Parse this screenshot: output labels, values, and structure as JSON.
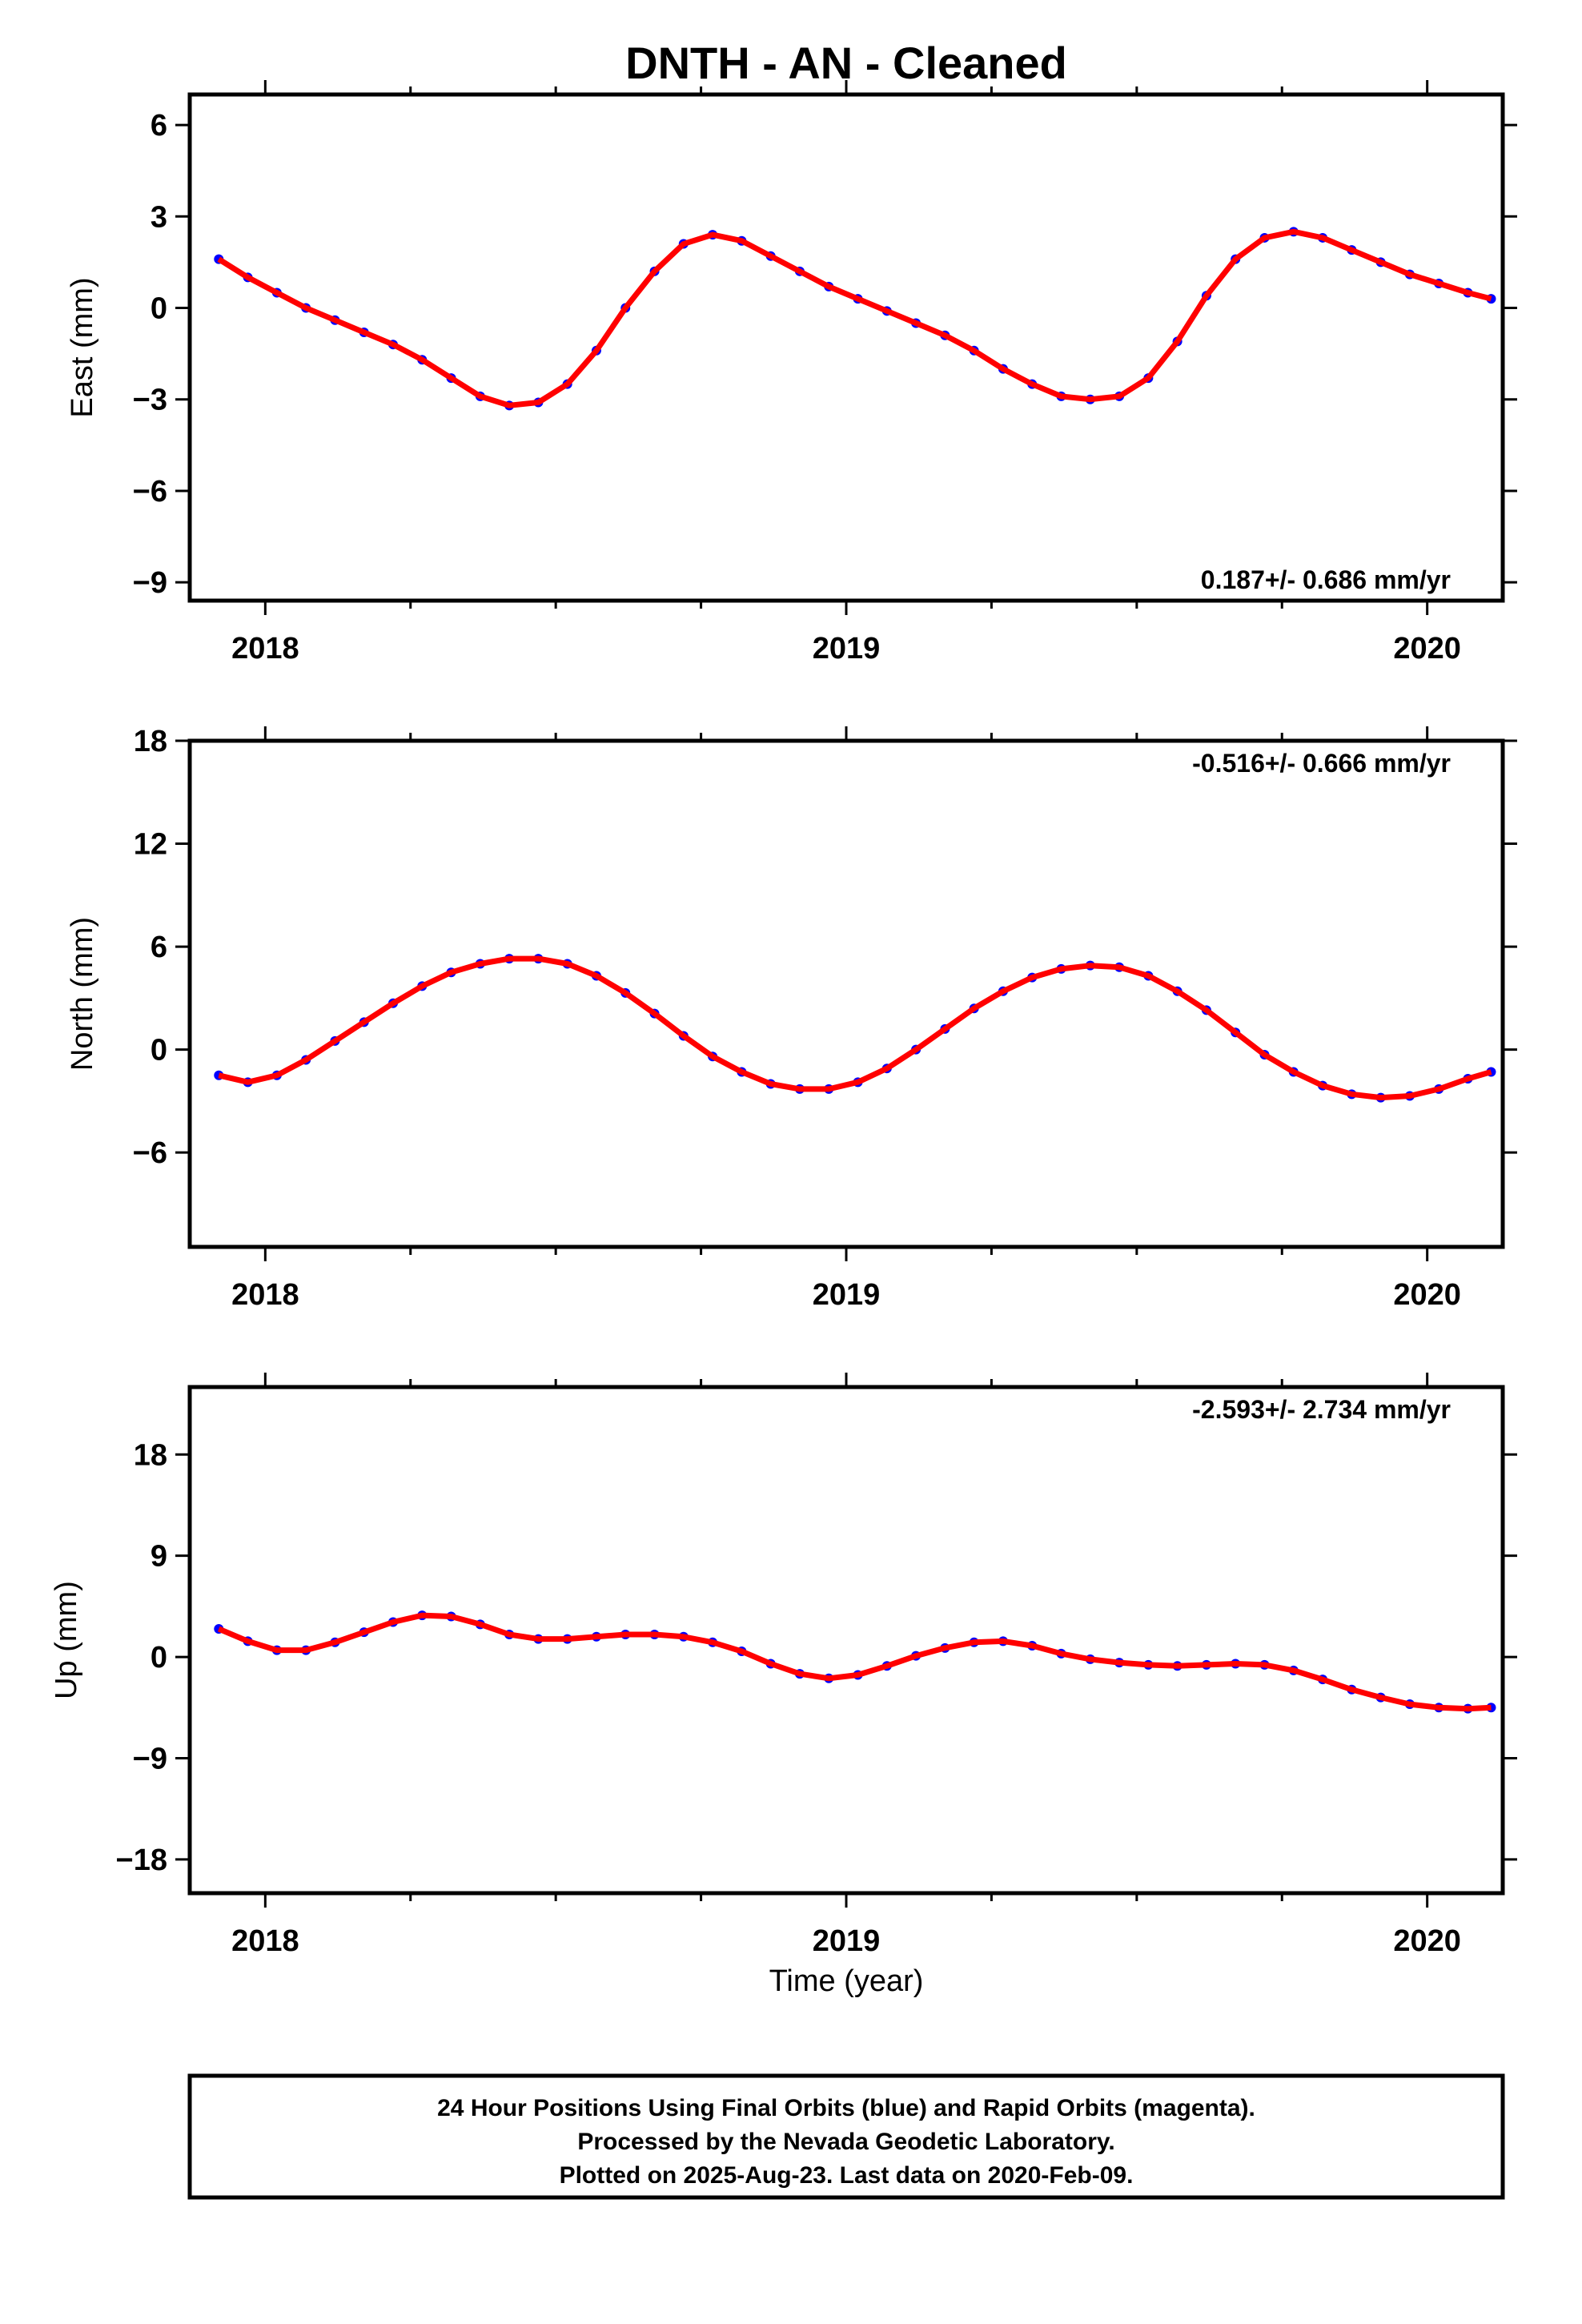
{
  "title": "DNTH  - AN - Cleaned",
  "xlabel": "Time (year)",
  "colors": {
    "data": "#0000ff",
    "fit": "#ff0000",
    "axis": "#000000"
  },
  "footer": {
    "line1": "24 Hour Positions Using Final Orbits (blue) and Rapid Orbits (magenta).",
    "line2": "Processed by the Nevada Geodetic Laboratory.",
    "line3": "Plotted on 2025-Aug-23. Last data on 2020-Feb-09."
  },
  "chart_data": [
    {
      "type": "scatter",
      "ylabel": "East (mm)",
      "rate_label": "0.187+/- 0.686 mm/yr",
      "xlim": [
        2017.87,
        2020.13
      ],
      "ylim": [
        -9.6,
        7.0
      ],
      "x_ticks": [
        2018,
        2019,
        2020
      ],
      "y_ticks": [
        -9,
        -6,
        -3,
        0,
        3,
        6
      ],
      "series": [
        {
          "x": [
            2017.92,
            2017.97,
            2018.02,
            2018.07,
            2018.12,
            2018.17,
            2018.22,
            2018.27,
            2018.32,
            2018.37,
            2018.42,
            2018.47,
            2018.52,
            2018.57,
            2018.62,
            2018.67,
            2018.72,
            2018.77,
            2018.82,
            2018.87,
            2018.92,
            2018.97,
            2019.02,
            2019.07,
            2019.12,
            2019.17,
            2019.22,
            2019.27,
            2019.32,
            2019.37,
            2019.42,
            2019.47,
            2019.52,
            2019.57,
            2019.62,
            2019.67,
            2019.72,
            2019.77,
            2019.82,
            2019.87,
            2019.92,
            2019.97,
            2020.02,
            2020.07,
            2020.11
          ],
          "y": [
            1.6,
            1.0,
            0.5,
            0.0,
            -0.4,
            -0.8,
            -1.2,
            -1.7,
            -2.3,
            -2.9,
            -3.2,
            -3.1,
            -2.5,
            -1.4,
            0.0,
            1.2,
            2.1,
            2.4,
            2.2,
            1.7,
            1.2,
            0.7,
            0.3,
            -0.1,
            -0.5,
            -0.9,
            -1.4,
            -2.0,
            -2.5,
            -2.9,
            -3.0,
            -2.9,
            -2.3,
            -1.1,
            0.4,
            1.6,
            2.3,
            2.5,
            2.3,
            1.9,
            1.5,
            1.1,
            0.8,
            0.5,
            0.3
          ]
        }
      ]
    },
    {
      "type": "scatter",
      "ylabel": "North (mm)",
      "rate_label": "-0.516+/- 0.666 mm/yr",
      "xlim": [
        2017.87,
        2020.13
      ],
      "ylim": [
        -11.5,
        18.0
      ],
      "x_ticks": [
        2018,
        2019,
        2020
      ],
      "y_ticks": [
        -6,
        0,
        6,
        12,
        18
      ],
      "series": [
        {
          "x": [
            2017.92,
            2017.97,
            2018.02,
            2018.07,
            2018.12,
            2018.17,
            2018.22,
            2018.27,
            2018.32,
            2018.37,
            2018.42,
            2018.47,
            2018.52,
            2018.57,
            2018.62,
            2018.67,
            2018.72,
            2018.77,
            2018.82,
            2018.87,
            2018.92,
            2018.97,
            2019.02,
            2019.07,
            2019.12,
            2019.17,
            2019.22,
            2019.27,
            2019.32,
            2019.37,
            2019.42,
            2019.47,
            2019.52,
            2019.57,
            2019.62,
            2019.67,
            2019.72,
            2019.77,
            2019.82,
            2019.87,
            2019.92,
            2019.97,
            2020.02,
            2020.07,
            2020.11
          ],
          "y": [
            -1.5,
            -1.9,
            -1.5,
            -0.6,
            0.5,
            1.6,
            2.7,
            3.7,
            4.5,
            5.0,
            5.3,
            5.3,
            5.0,
            4.3,
            3.3,
            2.1,
            0.8,
            -0.4,
            -1.3,
            -2.0,
            -2.3,
            -2.3,
            -1.9,
            -1.1,
            0.0,
            1.2,
            2.4,
            3.4,
            4.2,
            4.7,
            4.9,
            4.8,
            4.3,
            3.4,
            2.3,
            1.0,
            -0.3,
            -1.3,
            -2.1,
            -2.6,
            -2.8,
            -2.7,
            -2.3,
            -1.7,
            -1.3
          ]
        }
      ]
    },
    {
      "type": "scatter",
      "ylabel": "Up (mm)",
      "rate_label": "-2.593+/- 2.734 mm/yr",
      "xlim": [
        2017.87,
        2020.13
      ],
      "ylim": [
        -21.0,
        24.0
      ],
      "x_ticks": [
        2018,
        2019,
        2020
      ],
      "y_ticks": [
        -18,
        -9,
        0,
        9,
        18
      ],
      "series": [
        {
          "x": [
            2017.92,
            2017.97,
            2018.02,
            2018.07,
            2018.12,
            2018.17,
            2018.22,
            2018.27,
            2018.32,
            2018.37,
            2018.42,
            2018.47,
            2018.52,
            2018.57,
            2018.62,
            2018.67,
            2018.72,
            2018.77,
            2018.82,
            2018.87,
            2018.92,
            2018.97,
            2019.02,
            2019.07,
            2019.12,
            2019.17,
            2019.22,
            2019.27,
            2019.32,
            2019.37,
            2019.42,
            2019.47,
            2019.52,
            2019.57,
            2019.62,
            2019.67,
            2019.72,
            2019.77,
            2019.82,
            2019.87,
            2019.92,
            2019.97,
            2020.02,
            2020.07,
            2020.11
          ],
          "y": [
            2.5,
            1.4,
            0.6,
            0.6,
            1.3,
            2.2,
            3.1,
            3.7,
            3.6,
            2.9,
            2.0,
            1.6,
            1.6,
            1.8,
            2.0,
            2.0,
            1.8,
            1.3,
            0.5,
            -0.6,
            -1.5,
            -1.9,
            -1.6,
            -0.8,
            0.1,
            0.8,
            1.3,
            1.4,
            1.0,
            0.3,
            -0.2,
            -0.5,
            -0.7,
            -0.8,
            -0.7,
            -0.6,
            -0.7,
            -1.2,
            -2.0,
            -2.9,
            -3.6,
            -4.2,
            -4.5,
            -4.6,
            -4.5
          ]
        }
      ]
    }
  ]
}
